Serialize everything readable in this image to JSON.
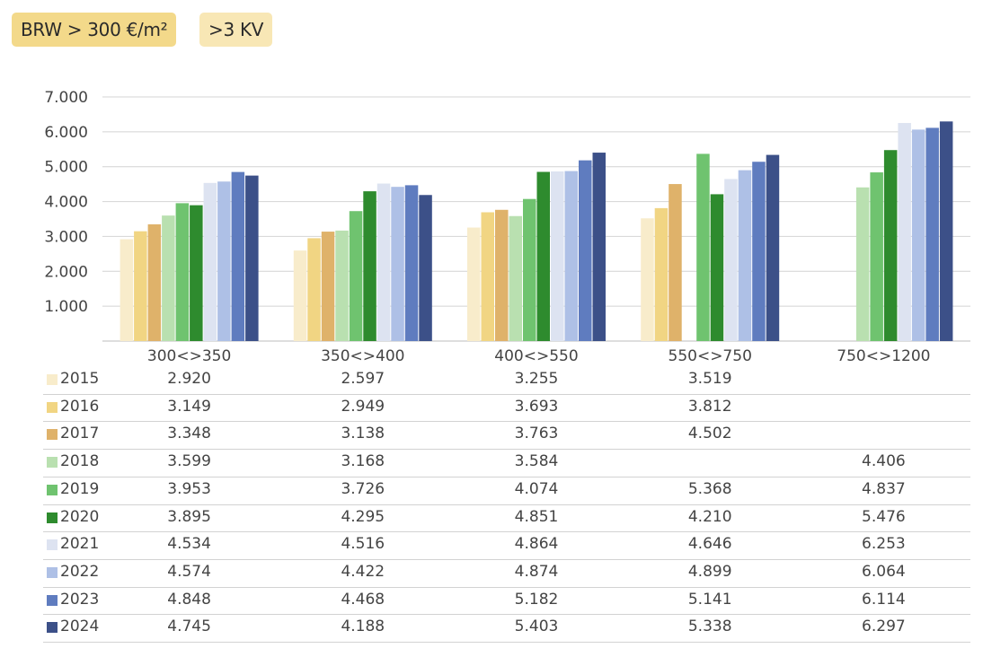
{
  "filters": {
    "price_tag": "BRW > 300 €/m²",
    "kv_tag": ">3 KV"
  },
  "colors": {
    "2015": "#f8eccb",
    "2016": "#f1d583",
    "2017": "#dfb26a",
    "2018": "#b9e0b0",
    "2019": "#6fc36f",
    "2020": "#2e8b2e",
    "2021": "#dde3f1",
    "2022": "#aec0e6",
    "2023": "#5f7cbf",
    "2024": "#3c5088"
  },
  "chart_data": {
    "type": "bar",
    "categories": [
      "300<>350",
      "350<>400",
      "400<>550",
      "550<>750",
      "750<>1200"
    ],
    "y_ticks": [
      "1.000",
      "2.000",
      "3.000",
      "4.000",
      "5.000",
      "6.000",
      "7.000"
    ],
    "ylim": [
      0,
      7000
    ],
    "grid": true,
    "series": [
      {
        "name": "2015",
        "values": [
          2920,
          2597,
          3255,
          3519,
          null
        ],
        "labels": [
          "2.920",
          "2.597",
          "3.255",
          "3.519",
          ""
        ]
      },
      {
        "name": "2016",
        "values": [
          3149,
          2949,
          3693,
          3812,
          null
        ],
        "labels": [
          "3.149",
          "2.949",
          "3.693",
          "3.812",
          ""
        ]
      },
      {
        "name": "2017",
        "values": [
          3348,
          3138,
          3763,
          4502,
          null
        ],
        "labels": [
          "3.348",
          "3.138",
          "3.763",
          "4.502",
          ""
        ]
      },
      {
        "name": "2018",
        "values": [
          3599,
          3168,
          3584,
          null,
          4406
        ],
        "labels": [
          "3.599",
          "3.168",
          "3.584",
          "",
          "4.406"
        ]
      },
      {
        "name": "2019",
        "values": [
          3953,
          3726,
          4074,
          5368,
          4837
        ],
        "labels": [
          "3.953",
          "3.726",
          "4.074",
          "5.368",
          "4.837"
        ]
      },
      {
        "name": "2020",
        "values": [
          3895,
          4295,
          4851,
          4210,
          5476
        ],
        "labels": [
          "3.895",
          "4.295",
          "4.851",
          "4.210",
          "5.476"
        ]
      },
      {
        "name": "2021",
        "values": [
          4534,
          4516,
          4864,
          4646,
          6253
        ],
        "labels": [
          "4.534",
          "4.516",
          "4.864",
          "4.646",
          "6.253"
        ]
      },
      {
        "name": "2022",
        "values": [
          4574,
          4422,
          4874,
          4899,
          6064
        ],
        "labels": [
          "4.574",
          "4.422",
          "4.874",
          "4.899",
          "6.064"
        ]
      },
      {
        "name": "2023",
        "values": [
          4848,
          4468,
          5182,
          5141,
          6114
        ],
        "labels": [
          "4.848",
          "4.468",
          "5.182",
          "5.141",
          "6.114"
        ]
      },
      {
        "name": "2024",
        "values": [
          4745,
          4188,
          5403,
          5338,
          6297
        ],
        "labels": [
          "4.745",
          "4.188",
          "5.403",
          "5.338",
          "6.297"
        ]
      }
    ]
  }
}
